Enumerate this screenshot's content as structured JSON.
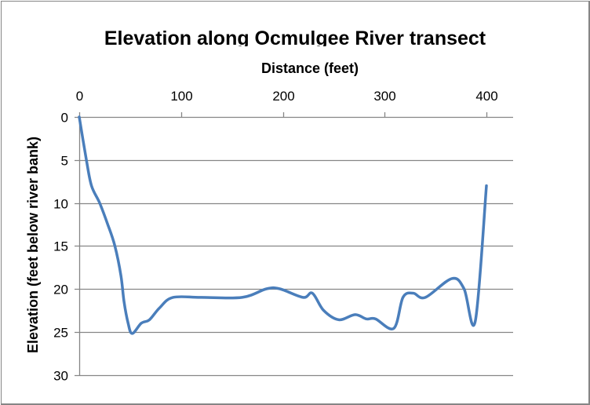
{
  "chart_data": {
    "type": "line",
    "title": "Elevation along Ocmulgee River transect",
    "xlabel": "Distance (feet)",
    "ylabel": "Elevation (feet below river bank)",
    "xlim": [
      0,
      425
    ],
    "ylim": [
      0,
      30
    ],
    "y_inverted": true,
    "x_axis_position": "top",
    "x_ticks": [
      0,
      100,
      200,
      300,
      400
    ],
    "y_ticks": [
      0,
      5,
      10,
      15,
      20,
      25,
      30
    ],
    "grid": {
      "horizontal": true,
      "vertical": false
    },
    "legend": null,
    "smoothed": true,
    "line_color": "#4a7ebb",
    "series": [
      {
        "name": "Elevation",
        "x": [
          0,
          7,
          12,
          20,
          28,
          35,
          41,
          44,
          48,
          52,
          61,
          69,
          79,
          92,
          120,
          160,
          184,
          197,
          220,
          229,
          240,
          255,
          271,
          282,
          291,
          309,
          318,
          328,
          340,
          366,
          378,
          389,
          400
        ],
        "values": [
          0,
          5,
          8,
          10,
          12.5,
          15,
          18.5,
          21.5,
          24,
          25.2,
          24,
          23.6,
          22.2,
          21,
          21,
          21,
          20,
          20,
          21,
          20.5,
          22.5,
          23.6,
          23,
          23.5,
          23.5,
          24.6,
          21,
          20.5,
          21,
          18.8,
          20,
          23.8,
          8
        ]
      }
    ]
  }
}
